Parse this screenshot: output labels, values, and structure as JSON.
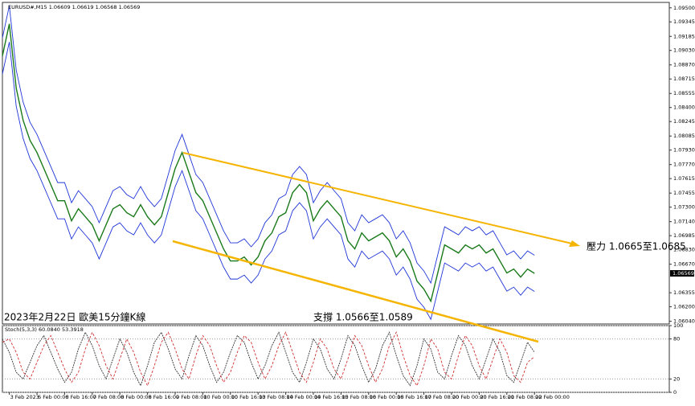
{
  "chart_data": [
    {
      "type": "line",
      "title": "EURUSD#,M15 1.06609 1.06619 1.06568 1.06569",
      "categories": [
        null,
        "3 Feb 2023",
        null,
        null,
        null,
        "6 Feb 00:00",
        null,
        null,
        null,
        "6 Feb 16:00",
        null,
        null,
        null,
        "7 Feb 08:00",
        null,
        null,
        null,
        "8 Feb 00:00",
        null,
        null,
        null,
        "8 Feb 16:00",
        null,
        null,
        null,
        "9 Feb 08:00",
        null,
        null,
        null,
        "10 Feb 00:00",
        null,
        null,
        null,
        "10 Feb 16:00",
        null,
        null,
        null,
        "13 Feb 08:00",
        null,
        null,
        null,
        "14 Feb 00:00",
        null,
        null,
        null,
        "14 Feb 16:00",
        null,
        null,
        null,
        "15 Feb 08:00",
        null,
        null,
        null,
        "16 Feb 00:00",
        null,
        null,
        null,
        "16 Feb 16:00",
        null,
        null,
        null,
        "17 Feb 08:00",
        null,
        null,
        null,
        "20 Feb 00:00",
        null,
        null,
        null,
        "20 Feb 16:00",
        null,
        null,
        null,
        "21 Feb 08:00",
        null,
        null,
        null,
        "22 Feb 00:00"
      ],
      "series": [
        {
          "color": "#1a7a1a",
          "values": [
            1.08968,
            1.09323,
            1.08613,
            1.08258,
            1.08036,
            1.07903,
            1.07726,
            1.07549,
            1.07371,
            1.07371,
            1.07149,
            1.07282,
            1.07194,
            1.07105,
            1.06928,
            1.07105,
            1.07282,
            1.07327,
            1.07238,
            1.07194,
            1.07327,
            1.07194,
            1.07105,
            1.07194,
            1.0746,
            1.07726,
            1.07903,
            1.07682,
            1.0746,
            1.07371,
            1.07194,
            1.07016,
            1.06839,
            1.06706,
            1.06706,
            1.0675,
            1.06662,
            1.0675,
            1.06928,
            1.07016,
            1.07194,
            1.07238,
            1.0746,
            1.07549,
            1.0746,
            1.07149,
            1.07282,
            1.07371,
            1.07282,
            1.07194,
            1.06928,
            1.06839,
            1.07016,
            1.06928,
            1.06972,
            1.07016,
            1.06928,
            1.0675,
            1.06839,
            1.06706,
            1.06484,
            1.06395,
            1.06262,
            1.06573,
            1.06883,
            1.06839,
            1.06794,
            1.06883,
            1.06839,
            1.06883,
            1.06794,
            1.06839,
            1.06706,
            1.06573,
            1.06617,
            1.06528,
            1.06617,
            1.06569
          ]
        },
        {
          "color": "#1f35d8",
          "values": [
            1.09168,
            1.09523,
            1.08813,
            1.08458,
            1.08236,
            1.08103,
            1.07926,
            1.07749,
            1.07571,
            1.07571,
            1.07349,
            1.07482,
            1.07394,
            1.07305,
            1.07128,
            1.07305,
            1.07482,
            1.07527,
            1.07438,
            1.07394,
            1.07527,
            1.07394,
            1.07305,
            1.07394,
            1.0766,
            1.07926,
            1.08103,
            1.07882,
            1.0766,
            1.07571,
            1.07394,
            1.07216,
            1.07039,
            1.06906,
            1.06906,
            1.0695,
            1.06862,
            1.0695,
            1.07128,
            1.07216,
            1.07394,
            1.07438,
            1.0766,
            1.07749,
            1.0766,
            1.07349,
            1.07482,
            1.07571,
            1.07482,
            1.07394,
            1.07128,
            1.07039,
            1.07216,
            1.07128,
            1.07172,
            1.07216,
            1.07128,
            1.0695,
            1.07039,
            1.06906,
            1.06684,
            1.06595,
            1.06462,
            1.06773,
            1.07083,
            1.07039,
            1.06994,
            1.07083,
            1.07039,
            1.07083,
            1.06994,
            1.07039,
            1.06906,
            1.06773,
            1.06817,
            1.06728,
            1.06817,
            1.06769
          ]
        },
        {
          "color": "#1f35d8",
          "values": [
            1.08768,
            1.09123,
            1.08413,
            1.08058,
            1.07836,
            1.07703,
            1.07526,
            1.07349,
            1.07171,
            1.07171,
            1.06949,
            1.07082,
            1.06994,
            1.06905,
            1.06728,
            1.06905,
            1.07082,
            1.07127,
            1.07038,
            1.06994,
            1.07127,
            1.06994,
            1.06905,
            1.06994,
            1.0726,
            1.07526,
            1.07703,
            1.07482,
            1.0726,
            1.07171,
            1.06994,
            1.06816,
            1.06639,
            1.06506,
            1.06506,
            1.0655,
            1.06462,
            1.0655,
            1.06728,
            1.06816,
            1.06994,
            1.07038,
            1.0726,
            1.07349,
            1.0726,
            1.06949,
            1.07082,
            1.07171,
            1.07082,
            1.06994,
            1.06728,
            1.06639,
            1.06816,
            1.06728,
            1.06772,
            1.06816,
            1.06728,
            1.0655,
            1.06639,
            1.06506,
            1.06284,
            1.06195,
            1.06062,
            1.06373,
            1.06683,
            1.06639,
            1.06594,
            1.06683,
            1.06639,
            1.06683,
            1.06594,
            1.06639,
            1.06506,
            1.06373,
            1.06417,
            1.06328,
            1.06417,
            1.06369
          ]
        }
      ],
      "ylim": [
        1.0601,
        1.0956
      ],
      "yticks": [
        {
          "value": 1.095,
          "label": "1.09500"
        },
        {
          "value": 1.09345,
          "label": "1.09345"
        },
        {
          "value": 1.09185,
          "label": "1.09185"
        },
        {
          "value": 1.0903,
          "label": "1.09030"
        },
        {
          "value": 1.0887,
          "label": "1.08870"
        },
        {
          "value": 1.08715,
          "label": "1.08715"
        },
        {
          "value": 1.08555,
          "label": "1.08555"
        },
        {
          "value": 1.084,
          "label": "1.08400"
        },
        {
          "value": 1.08245,
          "label": "1.08245"
        },
        {
          "value": 1.08085,
          "label": "1.08085"
        },
        {
          "value": 1.0793,
          "label": "1.07930"
        },
        {
          "value": 1.0777,
          "label": "1.07770"
        },
        {
          "value": 1.07615,
          "label": "1.07615"
        },
        {
          "value": 1.07455,
          "label": "1.07455"
        },
        {
          "value": 1.073,
          "label": "1.07300"
        },
        {
          "value": 1.0714,
          "label": "1.07140"
        },
        {
          "value": 1.06985,
          "label": "1.06985"
        },
        {
          "value": 1.0683,
          "label": "1.06830"
        },
        {
          "value": 1.0667,
          "label": "1.06670"
        },
        {
          "value": 1.06355,
          "label": "1.06355"
        },
        {
          "value": 1.062,
          "label": "1.06200"
        },
        {
          "value": 1.0604,
          "label": "1.06040"
        }
      ],
      "last_price": {
        "value": 1.06569,
        "label": "1.06569"
      },
      "annotations": [
        "壓力 1.0665至1.0685",
        "支撐 1.0566至1.0589",
        "2023年2月22日 歐美15分鐘K線"
      ]
    },
    {
      "type": "line",
      "title": "Stoch(5,3,3) 60.0840 53.3918",
      "series": [
        {
          "color": "#333333",
          "values": [
            80,
            60,
            30,
            20,
            45,
            70,
            85,
            60,
            35,
            15,
            30,
            65,
            90,
            70,
            40,
            20,
            50,
            80,
            60,
            30,
            10,
            40,
            75,
            90,
            65,
            35,
            20,
            55,
            85,
            70,
            40,
            15,
            30,
            60,
            85,
            75,
            45,
            20,
            40,
            70,
            90,
            60,
            30,
            15,
            45,
            80,
            65,
            35,
            20,
            50,
            85,
            70,
            40,
            15,
            35,
            70,
            90,
            55,
            25,
            10,
            40,
            80,
            65,
            30,
            20,
            55,
            85,
            70,
            40,
            20,
            50,
            80,
            60,
            25,
            15,
            45,
            75,
            60.08
          ]
        },
        {
          "color": "#d03030",
          "values": [
            75,
            80,
            60,
            30,
            20,
            45,
            70,
            85,
            60,
            35,
            15,
            30,
            65,
            90,
            70,
            40,
            20,
            50,
            80,
            60,
            30,
            10,
            40,
            75,
            90,
            65,
            35,
            20,
            55,
            85,
            70,
            40,
            15,
            30,
            60,
            85,
            75,
            45,
            20,
            40,
            70,
            90,
            60,
            30,
            15,
            45,
            80,
            65,
            35,
            20,
            50,
            85,
            70,
            40,
            15,
            35,
            70,
            90,
            55,
            25,
            10,
            40,
            80,
            65,
            30,
            20,
            55,
            85,
            70,
            40,
            20,
            50,
            80,
            60,
            25,
            15,
            45,
            53.39
          ]
        }
      ],
      "ylim": [
        0,
        100
      ],
      "yticks": [
        0,
        20,
        80,
        100
      ]
    }
  ]
}
